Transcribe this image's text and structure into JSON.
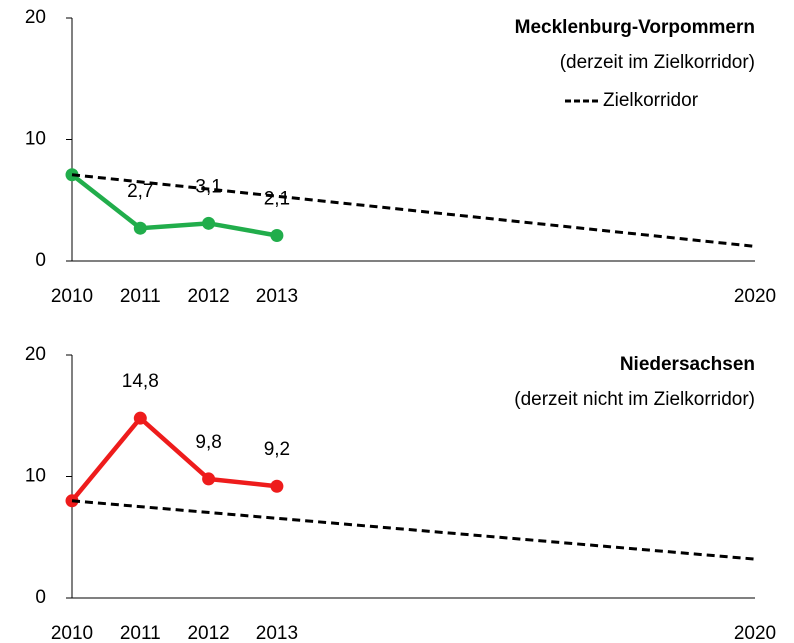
{
  "chart_data": [
    {
      "type": "line",
      "title": "Mecklenburg-Vorpommern",
      "subtitle": "(derzeit im Zielkorridor)",
      "xlim": [
        2010,
        2020
      ],
      "xticks": [
        2010,
        2011,
        2012,
        2013,
        2020
      ],
      "ylim": [
        0,
        20
      ],
      "yticks": [
        0,
        10,
        20
      ],
      "legend": "top-right",
      "series": [
        {
          "color": "#21ad4b",
          "x": [
            2010,
            2011,
            2012,
            2013
          ],
          "values": [
            7.1,
            2.7,
            3.1,
            2.1
          ],
          "value_labels": [
            null,
            "2,7",
            "3,1",
            "2,1"
          ]
        },
        {
          "name": "Zielkorridor",
          "color": "#000000",
          "dashed": true,
          "x": [
            2010,
            2020
          ],
          "values": [
            7.1,
            1.2
          ]
        }
      ]
    },
    {
      "type": "line",
      "title": "Niedersachsen",
      "subtitle": "(derzeit nicht im Zielkorridor)",
      "xlim": [
        2010,
        2020
      ],
      "xticks": [
        2010,
        2011,
        2012,
        2013,
        2020
      ],
      "ylim": [
        0,
        20
      ],
      "yticks": [
        0,
        10,
        20
      ],
      "series": [
        {
          "color": "#ee1c1c",
          "x": [
            2010,
            2011,
            2012,
            2013
          ],
          "values": [
            8.0,
            14.8,
            9.8,
            9.2
          ],
          "value_labels": [
            null,
            "14,8",
            "9,8",
            "9,2"
          ]
        },
        {
          "color": "#000000",
          "dashed": true,
          "x": [
            2010,
            2020
          ],
          "values": [
            8.0,
            3.2
          ]
        }
      ]
    }
  ]
}
